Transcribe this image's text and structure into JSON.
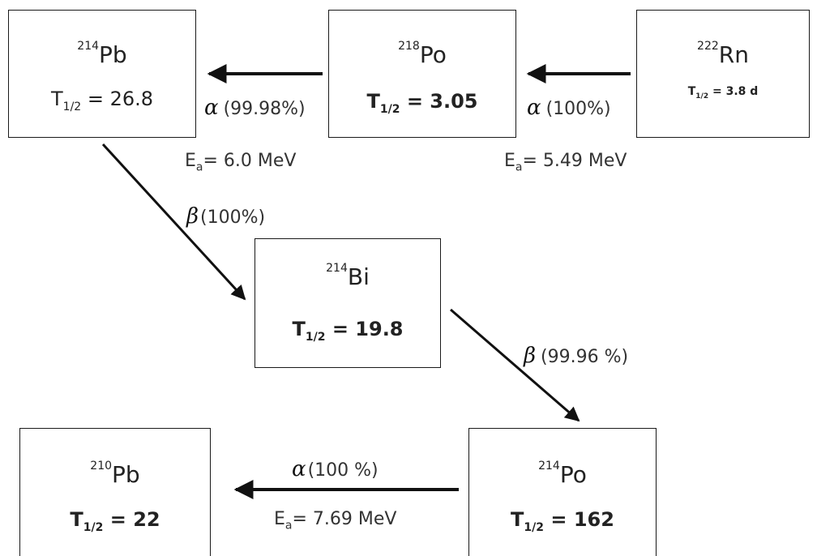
{
  "diagram": {
    "nodes": {
      "rn222": {
        "mass": "222",
        "element": "Rn",
        "half_life_symbol": "T",
        "half_life_sub": "1/2",
        "half_life_value": "= 3.8 d"
      },
      "po218": {
        "mass": "218",
        "element": "Po",
        "half_life_symbol": "T",
        "half_life_sub": "1/2",
        "half_life_value": "= 3.05"
      },
      "pb214": {
        "mass": "214",
        "element": "Pb",
        "half_life_symbol": "T",
        "half_life_sub": "1/2",
        "half_life_value": "= 26.8"
      },
      "bi214": {
        "mass": "214",
        "element": "Bi",
        "half_life_symbol": "T",
        "half_life_sub": "1/2",
        "half_life_value": "= 19.8"
      },
      "po214": {
        "mass": "214",
        "element": "Po",
        "half_life_symbol": "T",
        "half_life_sub": "1/2",
        "half_life_value": "= 162"
      },
      "pb210": {
        "mass": "210",
        "element": "Pb",
        "half_life_symbol": "T",
        "half_life_sub": "1/2",
        "half_life_value": "= 22"
      }
    },
    "edges": {
      "rn_to_po218": {
        "symbol": "α",
        "branch": "(100%)",
        "energy_prefix": "E",
        "energy_sub": "a",
        "energy_value": "= 5.49 MeV"
      },
      "po218_to_pb214": {
        "symbol": "α",
        "branch": "(99.98%)",
        "energy_prefix": "E",
        "energy_sub": "a",
        "energy_value": "= 6.0 MeV"
      },
      "pb214_to_bi214": {
        "symbol": "β",
        "branch": "(100%)"
      },
      "bi214_to_po214": {
        "symbol": "β",
        "branch": "(99.96 %)"
      },
      "po214_to_pb210": {
        "symbol": "α",
        "branch": "(100 %)",
        "energy_prefix": "E",
        "energy_sub": "a",
        "energy_value": "= 7.69 MeV"
      }
    }
  }
}
